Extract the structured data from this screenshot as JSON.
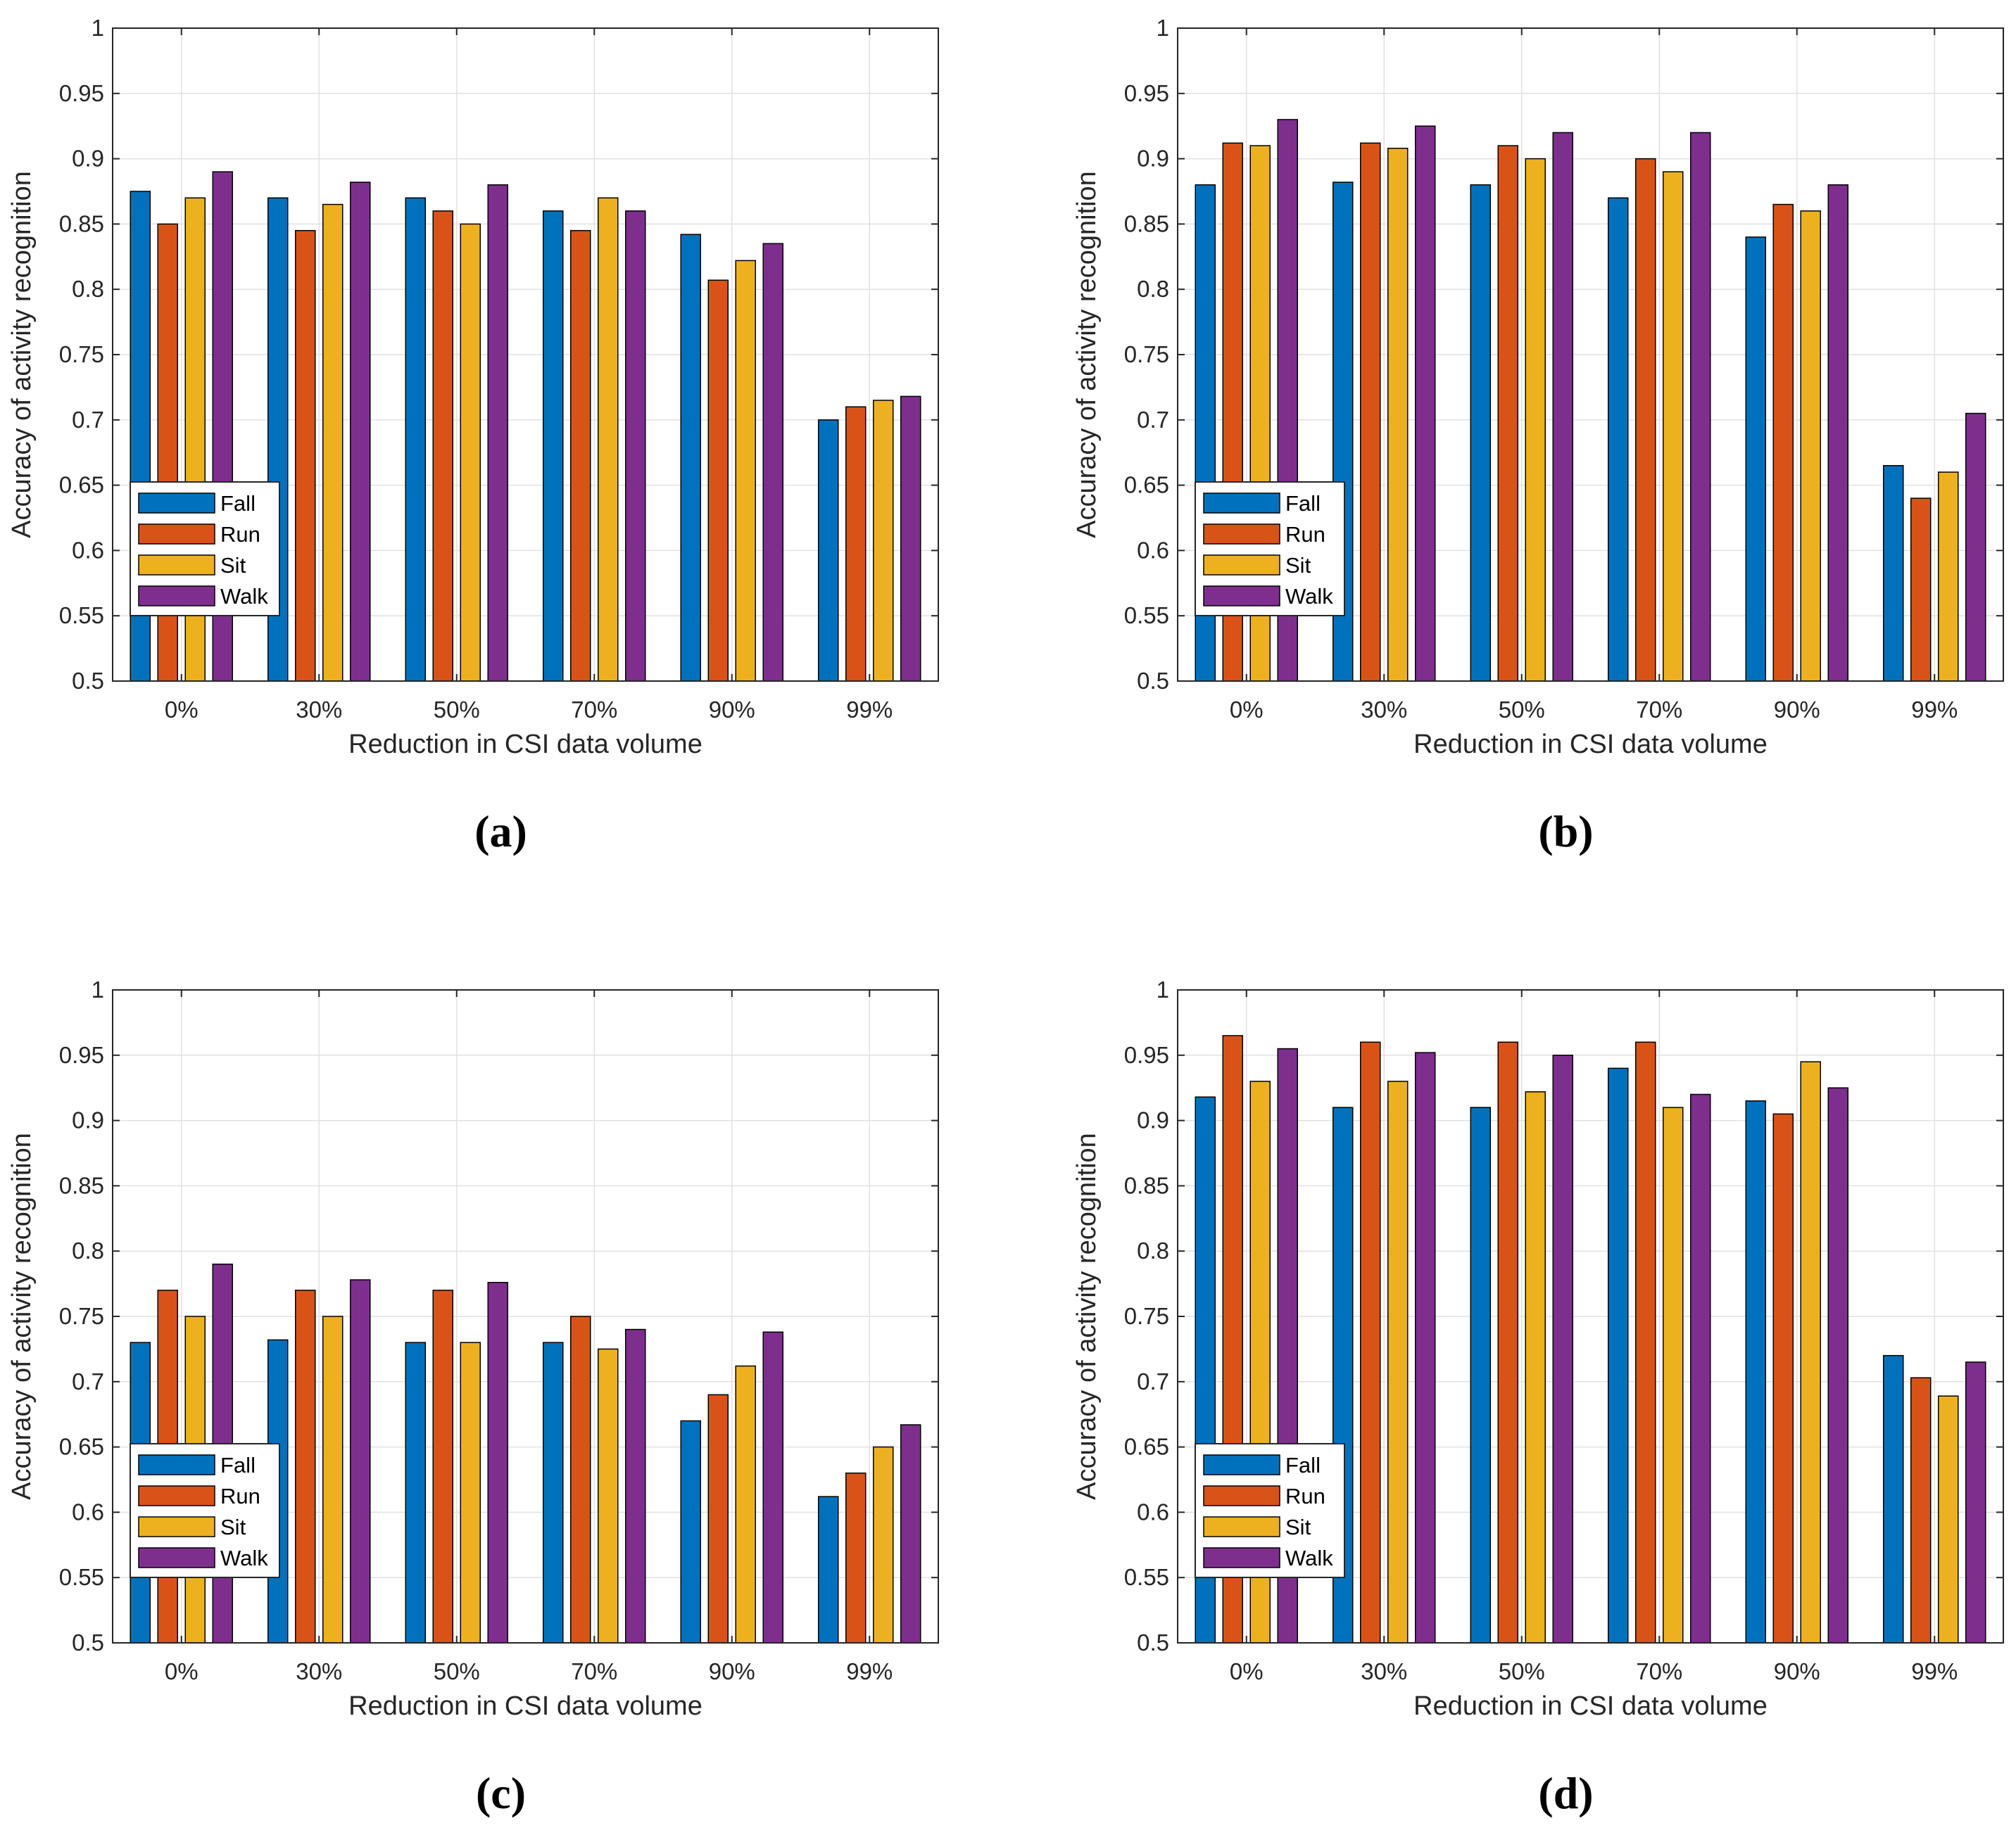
{
  "chart_data": [
    {
      "id": "a",
      "type": "bar",
      "panel_label": "(a)",
      "xlabel": "Reduction in CSI data volume",
      "ylabel": "Accuracy of activity recognition",
      "ylim": [
        0.5,
        1
      ],
      "yticks": [
        "0.5",
        "0.55",
        "0.6",
        "0.65",
        "0.7",
        "0.75",
        "0.8",
        "0.85",
        "0.9",
        "0.95",
        "1"
      ],
      "grid": true,
      "legend_position": "lower-left",
      "categories": [
        "0%",
        "30%",
        "50%",
        "70%",
        "90%",
        "99%"
      ],
      "series": [
        {
          "name": "Fall",
          "color": "#0072BD",
          "values": [
            0.875,
            0.87,
            0.87,
            0.86,
            0.842,
            0.7
          ]
        },
        {
          "name": "Run",
          "color": "#D95319",
          "values": [
            0.85,
            0.845,
            0.86,
            0.845,
            0.807,
            0.71
          ]
        },
        {
          "name": "Sit",
          "color": "#EDB120",
          "values": [
            0.87,
            0.865,
            0.85,
            0.87,
            0.822,
            0.715
          ]
        },
        {
          "name": "Walk",
          "color": "#7E2F8E",
          "values": [
            0.89,
            0.882,
            0.88,
            0.86,
            0.835,
            0.718
          ]
        }
      ]
    },
    {
      "id": "b",
      "type": "bar",
      "panel_label": "(b)",
      "xlabel": "Reduction in CSI data volume",
      "ylabel": "Accuracy of activity recognition",
      "ylim": [
        0.5,
        1
      ],
      "yticks": [
        "0.5",
        "0.55",
        "0.6",
        "0.65",
        "0.7",
        "0.75",
        "0.8",
        "0.85",
        "0.9",
        "0.95",
        "1"
      ],
      "grid": true,
      "legend_position": "lower-left",
      "categories": [
        "0%",
        "30%",
        "50%",
        "70%",
        "90%",
        "99%"
      ],
      "series": [
        {
          "name": "Fall",
          "color": "#0072BD",
          "values": [
            0.88,
            0.882,
            0.88,
            0.87,
            0.84,
            0.665
          ]
        },
        {
          "name": "Run",
          "color": "#D95319",
          "values": [
            0.912,
            0.912,
            0.91,
            0.9,
            0.865,
            0.64
          ]
        },
        {
          "name": "Sit",
          "color": "#EDB120",
          "values": [
            0.91,
            0.908,
            0.9,
            0.89,
            0.86,
            0.66
          ]
        },
        {
          "name": "Walk",
          "color": "#7E2F8E",
          "values": [
            0.93,
            0.925,
            0.92,
            0.92,
            0.88,
            0.705
          ]
        }
      ]
    },
    {
      "id": "c",
      "type": "bar",
      "panel_label": "(c)",
      "xlabel": "Reduction in CSI data volume",
      "ylabel": "Accuracy of activity recognition",
      "ylim": [
        0.5,
        1
      ],
      "yticks": [
        "0.5",
        "0.55",
        "0.6",
        "0.65",
        "0.7",
        "0.75",
        "0.8",
        "0.85",
        "0.9",
        "0.95",
        "1"
      ],
      "grid": true,
      "legend_position": "lower-left",
      "categories": [
        "0%",
        "30%",
        "50%",
        "70%",
        "90%",
        "99%"
      ],
      "series": [
        {
          "name": "Fall",
          "color": "#0072BD",
          "values": [
            0.73,
            0.732,
            0.73,
            0.73,
            0.67,
            0.612
          ]
        },
        {
          "name": "Run",
          "color": "#D95319",
          "values": [
            0.77,
            0.77,
            0.77,
            0.75,
            0.69,
            0.63
          ]
        },
        {
          "name": "Sit",
          "color": "#EDB120",
          "values": [
            0.75,
            0.75,
            0.73,
            0.725,
            0.712,
            0.65
          ]
        },
        {
          "name": "Walk",
          "color": "#7E2F8E",
          "values": [
            0.79,
            0.778,
            0.776,
            0.74,
            0.738,
            0.667
          ]
        }
      ]
    },
    {
      "id": "d",
      "type": "bar",
      "panel_label": "(d)",
      "xlabel": "Reduction in CSI data volume",
      "ylabel": "Accuracy of activity recognition",
      "ylim": [
        0.5,
        1
      ],
      "yticks": [
        "0.5",
        "0.55",
        "0.6",
        "0.65",
        "0.7",
        "0.75",
        "0.8",
        "0.85",
        "0.9",
        "0.95",
        "1"
      ],
      "grid": true,
      "legend_position": "lower-left",
      "categories": [
        "0%",
        "30%",
        "50%",
        "70%",
        "90%",
        "99%"
      ],
      "series": [
        {
          "name": "Fall",
          "color": "#0072BD",
          "values": [
            0.918,
            0.91,
            0.91,
            0.94,
            0.915,
            0.72
          ]
        },
        {
          "name": "Run",
          "color": "#D95319",
          "values": [
            0.965,
            0.96,
            0.96,
            0.96,
            0.905,
            0.703
          ]
        },
        {
          "name": "Sit",
          "color": "#EDB120",
          "values": [
            0.93,
            0.93,
            0.922,
            0.91,
            0.945,
            0.689
          ]
        },
        {
          "name": "Walk",
          "color": "#7E2F8E",
          "values": [
            0.955,
            0.952,
            0.95,
            0.92,
            0.925,
            0.715
          ]
        }
      ]
    }
  ]
}
